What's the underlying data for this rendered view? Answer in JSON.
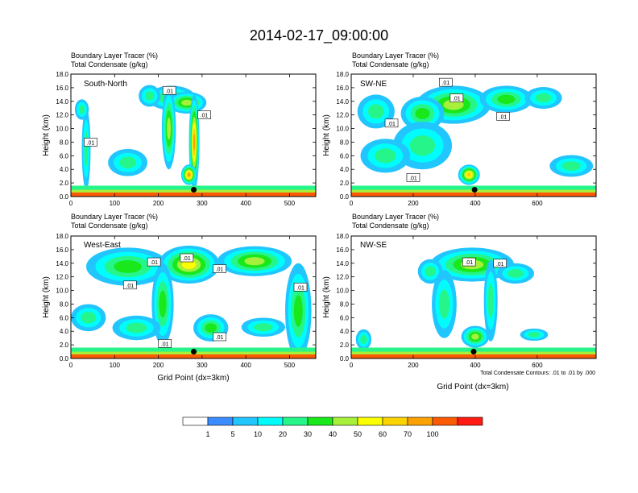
{
  "figure": {
    "title": "2014-02-17_09:00:00",
    "colorbar": {
      "labels": [
        "1",
        "5",
        "10",
        "20",
        "30",
        "40",
        "50",
        "60",
        "70",
        "100"
      ],
      "colors": [
        "#ffffff",
        "#3a8cff",
        "#21c6ff",
        "#00fdfb",
        "#26f58a",
        "#19e81b",
        "#a6f03c",
        "#fbff00",
        "#fbd202",
        "#fca104",
        "#fb5a05",
        "#ff1a12"
      ]
    },
    "contour_note": "Total Condensate Contours: .01 to .01 by .000",
    "bottom_xlabel": "Grid Point (dx=3km)"
  },
  "chart_data": [
    {
      "type": "heatmap",
      "panel": "South-North",
      "title_line1": "Boundary Layer Tracer   (%)",
      "title_line2": "Total Condensate   (g/kg)",
      "ylabel": "Height (km)",
      "xlabel": "",
      "xlim": [
        0,
        560
      ],
      "ylim": [
        0,
        18
      ],
      "xticks": [
        0,
        100,
        200,
        300,
        400,
        500
      ],
      "yticks": [
        "0.0",
        "2.0",
        "4.0",
        "6.0",
        "8.0",
        "10.0",
        "12.0",
        "14.0",
        "16.0",
        "18.0"
      ],
      "marker": {
        "x": 281,
        "y": 1.0
      },
      "contour_labels": [
        {
          "text": ".01",
          "x": 225,
          "y": 15.6
        },
        {
          "text": ".01",
          "x": 305,
          "y": 12.0
        },
        {
          "text": ".01",
          "x": 45,
          "y": 8.0
        }
      ],
      "blobs": [
        {
          "x": 230,
          "y": 14.5,
          "w": 55,
          "h": 1.8,
          "v": 25
        },
        {
          "x": 265,
          "y": 13.8,
          "w": 45,
          "h": 1.6,
          "v": 35
        },
        {
          "x": 180,
          "y": 14.8,
          "w": 25,
          "h": 1.6,
          "v": 12
        },
        {
          "x": 282,
          "y": 8,
          "w": 12,
          "h": 7,
          "v": 60
        },
        {
          "x": 224,
          "y": 10,
          "w": 16,
          "h": 6,
          "v": 30
        },
        {
          "x": 35,
          "y": 7,
          "w": 10,
          "h": 6,
          "v": 12
        },
        {
          "x": 25,
          "y": 12.8,
          "w": 16,
          "h": 1.5,
          "v": 10
        },
        {
          "x": 130,
          "y": 5,
          "w": 45,
          "h": 2,
          "v": 10
        },
        {
          "x": 270,
          "y": 3.2,
          "w": 18,
          "h": 1.5,
          "v": 60
        }
      ]
    },
    {
      "type": "heatmap",
      "panel": "SW-NE",
      "title_line1": "Boundary Layer Tracer   (%)",
      "title_line2": "Total Condensate   (g/kg)",
      "ylabel": "Height (km)",
      "xlabel": "",
      "xlim": [
        0,
        790
      ],
      "ylim": [
        0,
        18
      ],
      "xticks": [
        0,
        200,
        400,
        600
      ],
      "yticks": [
        "0.0",
        "2.0",
        "4.0",
        "6.0",
        "8.0",
        "10.0",
        "12.0",
        "14.0",
        "16.0",
        "18.0"
      ],
      "marker": {
        "x": 398,
        "y": 1.0
      },
      "contour_labels": [
        {
          "text": ".01",
          "x": 305,
          "y": 16.8
        },
        {
          "text": ".01",
          "x": 340,
          "y": 14.5
        },
        {
          "text": ".01",
          "x": 130,
          "y": 10.8
        },
        {
          "text": ".01",
          "x": 490,
          "y": 11.8
        },
        {
          "text": ".01",
          "x": 200,
          "y": 2.8
        }
      ],
      "blobs": [
        {
          "x": 330,
          "y": 13.5,
          "w": 120,
          "h": 2.8,
          "v": 35
        },
        {
          "x": 230,
          "y": 12.2,
          "w": 70,
          "h": 2.5,
          "v": 20
        },
        {
          "x": 500,
          "y": 14.3,
          "w": 85,
          "h": 2.0,
          "v": 28
        },
        {
          "x": 620,
          "y": 14.5,
          "w": 60,
          "h": 1.6,
          "v": 15
        },
        {
          "x": 80,
          "y": 12.5,
          "w": 60,
          "h": 2.5,
          "v": 12
        },
        {
          "x": 230,
          "y": 7.5,
          "w": 95,
          "h": 3.5,
          "v": 15
        },
        {
          "x": 110,
          "y": 6,
          "w": 80,
          "h": 2.5,
          "v": 12
        },
        {
          "x": 710,
          "y": 4.5,
          "w": 70,
          "h": 1.6,
          "v": 15
        },
        {
          "x": 380,
          "y": 3.2,
          "w": 35,
          "h": 1.5,
          "v": 55
        }
      ]
    },
    {
      "type": "heatmap",
      "panel": "West-East",
      "title_line1": "Boundary Layer Tracer   (%)",
      "title_line2": "Total Condensate   (g/kg)",
      "ylabel": "Height (km)",
      "xlabel": "Grid Point (dx=3km)",
      "xlim": [
        0,
        560
      ],
      "ylim": [
        0,
        18
      ],
      "xticks": [
        0,
        100,
        200,
        300,
        400,
        500
      ],
      "yticks": [
        "0.0",
        "2.0",
        "4.0",
        "6.0",
        "8.0",
        "10.0",
        "12.0",
        "14.0",
        "16.0",
        "18.0"
      ],
      "marker": {
        "x": 281,
        "y": 1.0
      },
      "contour_labels": [
        {
          "text": ".01",
          "x": 190,
          "y": 14.2
        },
        {
          "text": ".01",
          "x": 265,
          "y": 14.8
        },
        {
          "text": ".01",
          "x": 340,
          "y": 13.2
        },
        {
          "text": ".01",
          "x": 135,
          "y": 10.8
        },
        {
          "text": ".01",
          "x": 525,
          "y": 10.5
        },
        {
          "text": ".01",
          "x": 340,
          "y": 3.2
        },
        {
          "text": ".01",
          "x": 215,
          "y": 2.2
        }
      ],
      "blobs": [
        {
          "x": 130,
          "y": 13.5,
          "w": 95,
          "h": 2.8,
          "v": 22
        },
        {
          "x": 270,
          "y": 13.8,
          "w": 70,
          "h": 2.8,
          "v": 40
        },
        {
          "x": 420,
          "y": 14.3,
          "w": 85,
          "h": 2.2,
          "v": 38
        },
        {
          "x": 210,
          "y": 8,
          "w": 25,
          "h": 6,
          "v": 25
        },
        {
          "x": 520,
          "y": 7,
          "w": 30,
          "h": 7,
          "v": 25
        },
        {
          "x": 40,
          "y": 6,
          "w": 40,
          "h": 2,
          "v": 10
        },
        {
          "x": 150,
          "y": 4.5,
          "w": 55,
          "h": 1.8,
          "v": 12
        },
        {
          "x": 320,
          "y": 4.5,
          "w": 40,
          "h": 2.0,
          "v": 28
        },
        {
          "x": 440,
          "y": 4.6,
          "w": 50,
          "h": 1.4,
          "v": 12
        }
      ]
    },
    {
      "type": "heatmap",
      "panel": "NW-SE",
      "title_line1": "Boundary Layer Tracer   (%)",
      "title_line2": "Total Condensate   (g/kg)",
      "ylabel": "Height (km)",
      "xlabel": "Grid Point (dx=3km)",
      "xlim": [
        0,
        790
      ],
      "ylim": [
        0,
        18
      ],
      "xticks": [
        0,
        200,
        400,
        600
      ],
      "yticks": [
        "0.0",
        "2.0",
        "4.0",
        "6.0",
        "8.0",
        "10.0",
        "12.0",
        "14.0",
        "16.0",
        "18.0"
      ],
      "marker": {
        "x": 395,
        "y": 1.0
      },
      "contour_labels": [
        {
          "text": ".01",
          "x": 380,
          "y": 14.2
        },
        {
          "text": ".01",
          "x": 480,
          "y": 14.0
        }
      ],
      "blobs": [
        {
          "x": 390,
          "y": 13.8,
          "w": 135,
          "h": 2.5,
          "v": 35
        },
        {
          "x": 530,
          "y": 12.5,
          "w": 60,
          "h": 1.5,
          "v": 15
        },
        {
          "x": 255,
          "y": 12.8,
          "w": 40,
          "h": 1.8,
          "v": 12
        },
        {
          "x": 450,
          "y": 8.5,
          "w": 22,
          "h": 6,
          "v": 15
        },
        {
          "x": 300,
          "y": 8,
          "w": 40,
          "h": 5,
          "v": 10
        },
        {
          "x": 400,
          "y": 3.2,
          "w": 45,
          "h": 1.6,
          "v": 35
        },
        {
          "x": 40,
          "y": 2.8,
          "w": 25,
          "h": 1.5,
          "v": 10
        },
        {
          "x": 590,
          "y": 3.5,
          "w": 45,
          "h": 0.9,
          "v": 10
        },
        {
          "x": 740,
          "y": 0.9,
          "w": 40,
          "h": 0.6,
          "v": 15
        }
      ]
    }
  ]
}
